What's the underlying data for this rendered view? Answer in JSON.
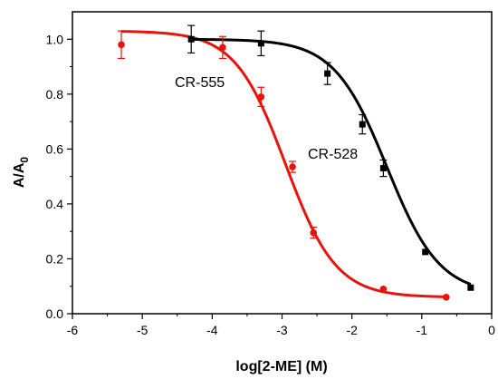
{
  "chart_data": {
    "type": "scatter",
    "xlabel": "log[2-ME] (M)",
    "ylabel_main": "A/A",
    "ylabel_sub": "0",
    "xlim": [
      -6,
      0
    ],
    "ylim": [
      0.0,
      1.1
    ],
    "xticks": [
      -6,
      -5,
      -4,
      -3,
      -2,
      -1,
      0
    ],
    "xtick_labels": [
      "-6",
      "-5",
      "-4",
      "-3",
      "-2",
      "-1",
      "0"
    ],
    "yticks": [
      0.0,
      0.2,
      0.4,
      0.6,
      0.8,
      1.0
    ],
    "ytick_labels": [
      "0.0",
      "0.2",
      "0.4",
      "0.6",
      "0.8",
      "1.0"
    ],
    "grid": false,
    "series": [
      {
        "name": "CR-555",
        "color": "#e8140c",
        "marker": "circle",
        "points": [
          {
            "x": -5.3,
            "y": 0.98,
            "err": 0.05
          },
          {
            "x": -3.85,
            "y": 0.97,
            "err": 0.04
          },
          {
            "x": -3.3,
            "y": 0.79,
            "err": 0.035
          },
          {
            "x": -2.85,
            "y": 0.535,
            "err": 0.02
          },
          {
            "x": -2.55,
            "y": 0.295,
            "err": 0.02
          },
          {
            "x": -1.55,
            "y": 0.09,
            "err": 0.0
          },
          {
            "x": -0.65,
            "y": 0.06,
            "err": 0.0
          }
        ],
        "fit": {
          "top": 1.03,
          "bottom": 0.06,
          "logEC50": -2.95,
          "hill": 1.2
        }
      },
      {
        "name": "CR-528",
        "color": "#000000",
        "marker": "square",
        "points": [
          {
            "x": -4.3,
            "y": 1.0,
            "err": 0.05
          },
          {
            "x": -3.3,
            "y": 0.985,
            "err": 0.045
          },
          {
            "x": -2.35,
            "y": 0.875,
            "err": 0.04
          },
          {
            "x": -1.85,
            "y": 0.69,
            "err": 0.035
          },
          {
            "x": -1.55,
            "y": 0.53,
            "err": 0.03
          },
          {
            "x": -0.95,
            "y": 0.225,
            "err": 0.0
          },
          {
            "x": -0.3,
            "y": 0.095,
            "err": 0.0
          }
        ],
        "fit": {
          "top": 1.0,
          "bottom": 0.07,
          "logEC50": -1.5,
          "hill": 1.15
        }
      }
    ]
  }
}
